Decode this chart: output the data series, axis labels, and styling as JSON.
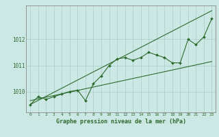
{
  "xlabel": "Graphe pression niveau de la mer (hPa)",
  "hours": [
    0,
    1,
    2,
    3,
    4,
    5,
    6,
    7,
    8,
    9,
    10,
    11,
    12,
    13,
    14,
    15,
    16,
    17,
    18,
    19,
    20,
    21,
    22,
    23
  ],
  "pressure": [
    1009.5,
    1009.8,
    1009.7,
    1009.8,
    1009.9,
    1010.0,
    1010.05,
    1009.65,
    1010.3,
    1010.6,
    1011.0,
    1011.25,
    1011.3,
    1011.2,
    1011.3,
    1011.5,
    1011.4,
    1011.3,
    1011.1,
    1011.1,
    1012.0,
    1011.8,
    1012.1,
    1012.8
  ],
  "trend_line": [
    [
      0,
      1009.5
    ],
    [
      23,
      1013.1
    ]
  ],
  "trend_line2": [
    [
      0,
      1009.65
    ],
    [
      23,
      1011.15
    ]
  ],
  "bg_color": "#cce8e4",
  "grid_color": "#aaccc8",
  "line_color": "#2d6a2d",
  "marker_color": "#2d6a2d",
  "text_color": "#2d6a2d",
  "ylabel_values": [
    1010,
    1011,
    1012
  ],
  "ylim": [
    1009.2,
    1013.3
  ],
  "xlim": [
    -0.5,
    23.5
  ]
}
